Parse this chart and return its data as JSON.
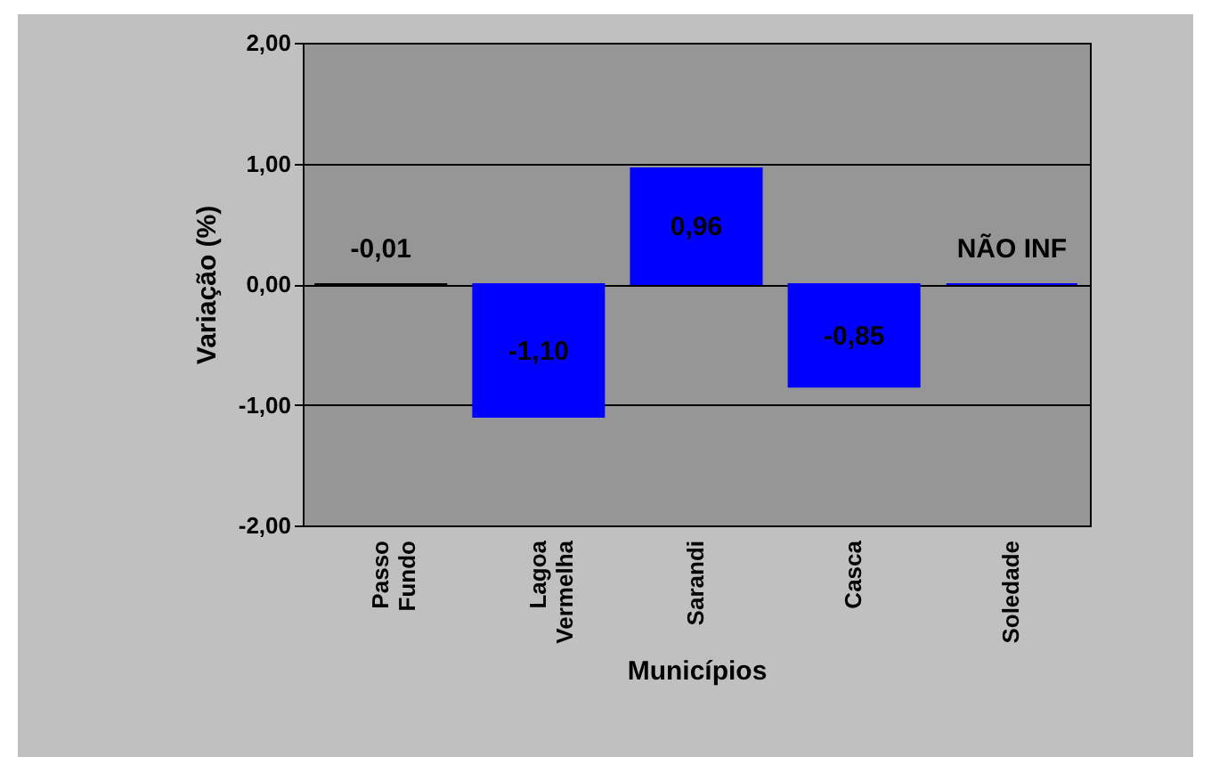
{
  "chart_data": {
    "type": "bar",
    "xlabel": "Municípios",
    "ylabel": "Variação (%)",
    "categories": [
      "Passo Fundo",
      "Lagoa Vermelha",
      "Sarandi",
      "Casca",
      "Soledade"
    ],
    "values": [
      -0.01,
      -1.1,
      0.96,
      -0.85,
      0
    ],
    "colors": [
      "#000000",
      "#0000ff",
      "#0000ff",
      "#0000ff",
      "#0000ff"
    ],
    "value_labels": [
      "-0,01",
      "-1,10",
      "0,96",
      "-0,85",
      "NÃO INF"
    ],
    "ylim": [
      -2,
      2
    ],
    "yticks": [
      {
        "value": -2,
        "label": "-2,00"
      },
      {
        "value": -1,
        "label": "-1,00"
      },
      {
        "value": 0,
        "label": "0,00"
      },
      {
        "value": 1,
        "label": "1,00"
      },
      {
        "value": 2,
        "label": "2,00"
      }
    ],
    "grid": "y",
    "legend": false
  }
}
